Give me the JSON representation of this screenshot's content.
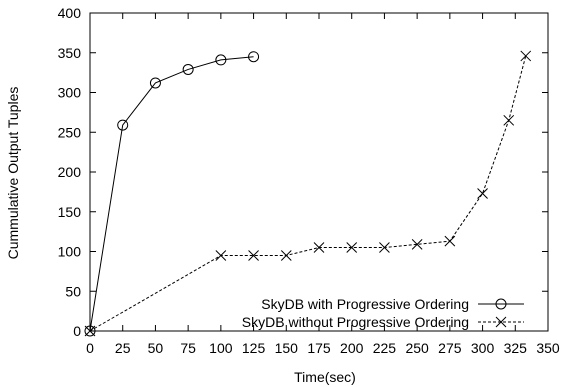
{
  "chart_data": {
    "type": "line",
    "xlabel": "Time(sec)",
    "ylabel": "Cummulative Output Tuples",
    "xlim": [
      0,
      350
    ],
    "ylim": [
      0,
      400
    ],
    "xticks": [
      0,
      25,
      50,
      75,
      100,
      125,
      150,
      175,
      200,
      225,
      250,
      275,
      300,
      325,
      350
    ],
    "yticks": [
      0,
      50,
      100,
      150,
      200,
      250,
      300,
      350,
      400
    ],
    "grid": false,
    "legend_position": "bottom-right",
    "series": [
      {
        "name": "SkyDB with Progressive Ordering",
        "marker": "circle",
        "line_style": "solid",
        "color": "#000000",
        "x": [
          0,
          25,
          50,
          75,
          100,
          125
        ],
        "y": [
          0,
          259,
          312,
          329,
          341,
          345
        ]
      },
      {
        "name": "SkyDB without Progressive Ordering",
        "marker": "cross",
        "line_style": "dashed",
        "color": "#000000",
        "x": [
          0,
          100,
          125,
          150,
          175,
          200,
          225,
          250,
          275,
          300,
          320,
          333
        ],
        "y": [
          0,
          95,
          95,
          95,
          105,
          105,
          105,
          109,
          113,
          173,
          265,
          346
        ]
      }
    ]
  }
}
